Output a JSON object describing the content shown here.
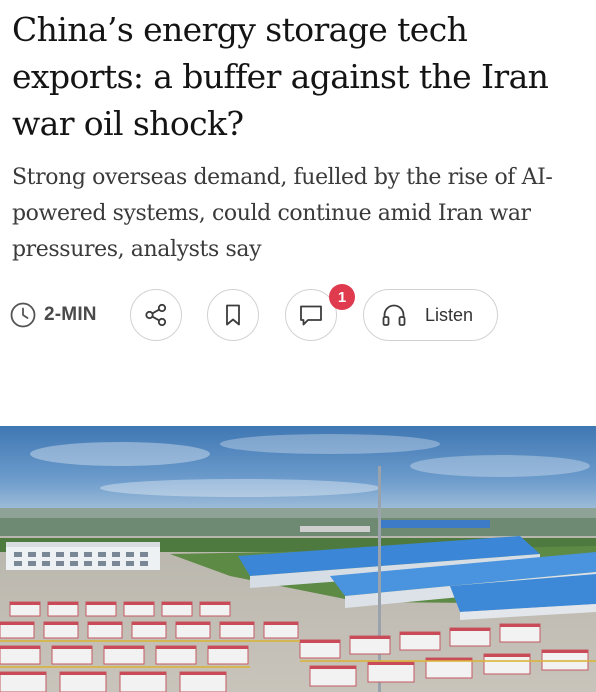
{
  "article": {
    "headline": "China’s energy storage tech exports: a buffer against the Iran war oil shock?",
    "subheadline": "Strong overseas demand, fuelled by the rise of AI-powered systems, could continue amid Iran war pressures, analysts say"
  },
  "actions": {
    "read_time": "2-MIN",
    "comment_count": "1",
    "listen_label": "Listen"
  },
  "icons": {
    "read_time": "clock-icon",
    "share": "share-icon",
    "bookmark": "bookmark-icon",
    "comment": "comment-icon",
    "listen": "headphones-icon"
  },
  "colors": {
    "badge": "#e03a4e",
    "headline_text": "#141414",
    "icon_stroke": "#3c3c3c"
  }
}
